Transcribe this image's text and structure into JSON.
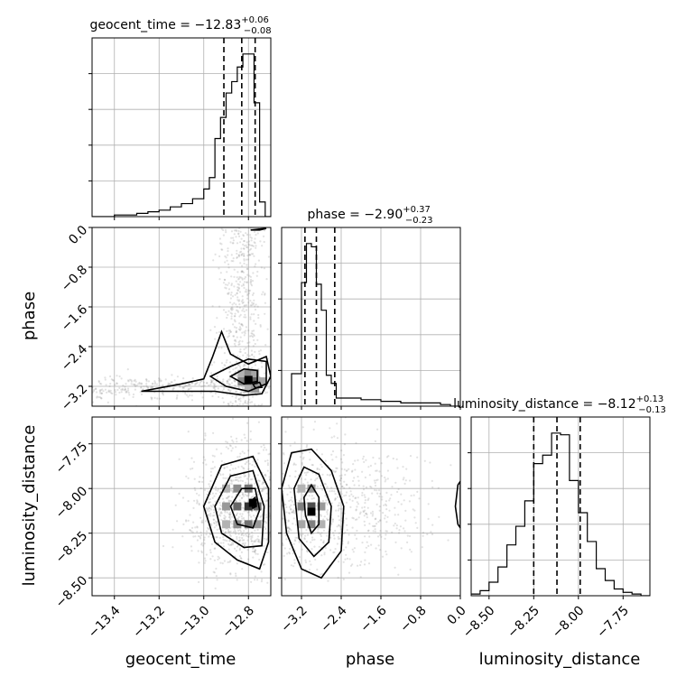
{
  "chart_data": {
    "type": "corner",
    "parameters": [
      "geocent_time",
      "phase",
      "luminosity_distance"
    ],
    "titles": [
      {
        "param": "geocent_time",
        "prefix": "geocent_time = ",
        "median": "−12.83",
        "upper": "+0.06",
        "lower": "−0.08"
      },
      {
        "param": "phase",
        "prefix": "phase = ",
        "median": "−2.90",
        "upper": "+0.37",
        "lower": "−0.23"
      },
      {
        "param": "luminosity_distance",
        "prefix": "luminosity_distance = ",
        "median": "−8.12",
        "upper": "+0.13",
        "lower": "−0.13"
      }
    ],
    "axis_labels": {
      "x": [
        "geocent_time",
        "phase",
        "luminosity_distance"
      ],
      "y": [
        "phase",
        "luminosity_distance"
      ]
    },
    "ranges": {
      "geocent_time": [
        -13.5,
        -12.7
      ],
      "phase": [
        -3.6,
        0.0
      ],
      "luminosity_distance": [
        -8.6,
        -7.6
      ]
    },
    "ticks": {
      "geocent_time": [
        {
          "v": -13.4,
          "label": "−13.4"
        },
        {
          "v": -13.2,
          "label": "−13.2"
        },
        {
          "v": -13.0,
          "label": "−13.0"
        },
        {
          "v": -12.8,
          "label": "−12.8"
        }
      ],
      "phase": [
        {
          "v": -3.2,
          "label": "−3.2"
        },
        {
          "v": -2.4,
          "label": "−2.4"
        },
        {
          "v": -1.6,
          "label": "−1.6"
        },
        {
          "v": -0.8,
          "label": "−0.8"
        },
        {
          "v": 0.0,
          "label": "0.0"
        }
      ],
      "luminosity_distance": [
        {
          "v": -8.5,
          "label": "−8.50"
        },
        {
          "v": -8.25,
          "label": "−8.25"
        },
        {
          "v": -8.0,
          "label": "−8.00"
        },
        {
          "v": -7.75,
          "label": "−7.75"
        }
      ]
    },
    "quantiles": {
      "geocent_time": [
        -12.91,
        -12.83,
        -12.77
      ],
      "phase": [
        -3.13,
        -2.9,
        -2.53
      ],
      "luminosity_distance": [
        -8.25,
        -8.12,
        -7.99
      ]
    },
    "histograms": {
      "geocent_time": {
        "edges": [
          -13.5,
          -13.45,
          -13.4,
          -13.35,
          -13.3,
          -13.25,
          -13.2,
          -13.15,
          -13.1,
          -13.05,
          -13.0,
          -12.975,
          -12.95,
          -12.925,
          -12.9,
          -12.875,
          -12.85,
          -12.825,
          -12.8,
          -12.775,
          -12.75,
          -12.725,
          -12.7
        ],
        "counts": [
          0,
          0,
          1,
          1,
          2,
          3,
          4,
          6,
          8,
          11,
          17,
          24,
          48,
          61,
          76,
          83,
          92,
          100,
          100,
          70,
          9,
          0
        ]
      },
      "phase": {
        "edges": [
          -3.6,
          -3.4,
          -3.2,
          -3.1,
          -3.0,
          -2.9,
          -2.8,
          -2.7,
          -2.6,
          -2.5,
          -2.4,
          -2.2,
          -2.0,
          -1.8,
          -1.6,
          -1.4,
          -1.2,
          -1.0,
          -0.8,
          -0.6,
          -0.4,
          -0.2,
          0.0
        ],
        "counts": [
          0,
          20,
          76,
          100,
          98,
          75,
          59,
          19,
          14,
          5,
          5,
          5,
          4,
          4,
          3,
          3,
          2,
          2,
          2,
          2,
          1,
          0
        ]
      },
      "luminosity_distance": {
        "edges": [
          -8.6,
          -8.55,
          -8.5,
          -8.45,
          -8.4,
          -8.35,
          -8.3,
          -8.25,
          -8.2,
          -8.15,
          -8.1,
          -8.05,
          -8.0,
          -7.95,
          -7.9,
          -7.85,
          -7.8,
          -7.75,
          -7.7,
          -7.65,
          -7.6
        ],
        "counts": [
          1,
          3,
          8,
          17,
          30,
          41,
          56,
          78,
          83,
          96,
          95,
          68,
          49,
          32,
          16,
          9,
          4,
          2,
          1,
          0
        ]
      }
    },
    "scatter_2d": {
      "phase_vs_geocent_time": "dense grey points concentrated near geocent_time -12.8 along full phase range, with tail toward -13.4 at phase near -3.3",
      "luminosity_distance_vs_geocent_time": "broad grey cloud centred near (-12.8, -8.1)",
      "luminosity_distance_vs_phase": "broad grey cloud centred near (-2.9, -8.1)"
    },
    "contours_2d": {
      "phase_vs_geocent_time": [
        [
          [
            -13.28,
            -3.3
          ],
          [
            -13.1,
            -3.15
          ],
          [
            -13.0,
            -3.05
          ],
          [
            -12.96,
            -2.6
          ],
          [
            -12.92,
            -2.1
          ],
          [
            -12.88,
            -2.55
          ],
          [
            -12.8,
            -2.75
          ],
          [
            -12.72,
            -2.6
          ],
          [
            -12.7,
            -3.0
          ],
          [
            -12.74,
            -3.35
          ],
          [
            -12.82,
            -3.38
          ],
          [
            -12.95,
            -3.3
          ],
          [
            -13.28,
            -3.3
          ]
        ],
        [
          [
            -12.97,
            -3.0
          ],
          [
            -12.88,
            -2.8
          ],
          [
            -12.8,
            -2.65
          ],
          [
            -12.72,
            -2.7
          ],
          [
            -12.72,
            -3.15
          ],
          [
            -12.8,
            -3.3
          ],
          [
            -12.9,
            -3.2
          ],
          [
            -12.97,
            -3.0
          ]
        ],
        [
          [
            -12.88,
            -3.0
          ],
          [
            -12.82,
            -2.85
          ],
          [
            -12.76,
            -2.88
          ],
          [
            -12.76,
            -3.1
          ],
          [
            -12.82,
            -3.15
          ],
          [
            -12.88,
            -3.0
          ]
        ],
        [
          [
            -12.78,
            -3.15
          ],
          [
            -12.75,
            -3.12
          ],
          [
            -12.74,
            -3.22
          ],
          [
            -12.77,
            -3.23
          ],
          [
            -12.78,
            -3.15
          ]
        ],
        [
          [
            -12.79,
            -0.05
          ],
          [
            -12.75,
            -0.05
          ],
          [
            -12.72,
            -0.02
          ],
          [
            -12.79,
            -0.05
          ]
        ]
      ],
      "luminosity_distance_vs_geocent_time": [
        [
          [
            -13.0,
            -8.1
          ],
          [
            -12.92,
            -7.87
          ],
          [
            -12.78,
            -7.82
          ],
          [
            -12.71,
            -8.0
          ],
          [
            -12.71,
            -8.3
          ],
          [
            -12.75,
            -8.45
          ],
          [
            -12.85,
            -8.4
          ],
          [
            -12.95,
            -8.3
          ],
          [
            -13.0,
            -8.1
          ]
        ],
        [
          [
            -12.95,
            -8.1
          ],
          [
            -12.88,
            -7.93
          ],
          [
            -12.78,
            -7.9
          ],
          [
            -12.73,
            -8.1
          ],
          [
            -12.74,
            -8.32
          ],
          [
            -12.82,
            -8.33
          ],
          [
            -12.92,
            -8.25
          ],
          [
            -12.95,
            -8.1
          ]
        ],
        [
          [
            -12.88,
            -8.1
          ],
          [
            -12.83,
            -8.0
          ],
          [
            -12.77,
            -8.0
          ],
          [
            -12.75,
            -8.12
          ],
          [
            -12.78,
            -8.22
          ],
          [
            -12.85,
            -8.2
          ],
          [
            -12.88,
            -8.1
          ]
        ],
        [
          [
            -12.79,
            -8.07
          ],
          [
            -12.77,
            -8.05
          ],
          [
            -12.765,
            -8.1
          ],
          [
            -12.78,
            -8.11
          ],
          [
            -12.79,
            -8.07
          ]
        ]
      ],
      "luminosity_distance_vs_phase": [
        [
          [
            -3.6,
            -8.0
          ],
          [
            -3.4,
            -7.8
          ],
          [
            -3.0,
            -7.78
          ],
          [
            -2.6,
            -7.9
          ],
          [
            -2.35,
            -8.1
          ],
          [
            -2.4,
            -8.35
          ],
          [
            -2.8,
            -8.5
          ],
          [
            -3.2,
            -8.45
          ],
          [
            -3.5,
            -8.25
          ],
          [
            -3.6,
            -8.0
          ]
        ],
        [
          [
            -3.35,
            -8.0
          ],
          [
            -3.15,
            -7.88
          ],
          [
            -2.85,
            -7.92
          ],
          [
            -2.6,
            -8.1
          ],
          [
            -2.65,
            -8.3
          ],
          [
            -2.95,
            -8.38
          ],
          [
            -3.25,
            -8.28
          ],
          [
            -3.35,
            -8.0
          ]
        ],
        [
          [
            -3.15,
            -8.05
          ],
          [
            -3.0,
            -7.98
          ],
          [
            -2.85,
            -8.05
          ],
          [
            -2.85,
            -8.2
          ],
          [
            -3.0,
            -8.25
          ],
          [
            -3.12,
            -8.15
          ],
          [
            -3.15,
            -8.05
          ]
        ],
        [
          [
            -0.05,
            -7.98
          ],
          [
            0.0,
            -7.96
          ],
          [
            0.0,
            -8.22
          ],
          [
            -0.05,
            -8.2
          ],
          [
            -0.1,
            -8.1
          ],
          [
            -0.05,
            -7.98
          ]
        ]
      ]
    },
    "density_cells_2d": {
      "phase_vs_geocent_time": [
        {
          "x": -12.83,
          "y": -2.95,
          "d": 0.3
        },
        {
          "x": -12.8,
          "y": -2.95,
          "d": 0.45
        },
        {
          "x": -12.77,
          "y": -2.95,
          "d": 0.35
        },
        {
          "x": -12.83,
          "y": -3.1,
          "d": 0.5
        },
        {
          "x": -12.8,
          "y": -3.1,
          "d": 0.75
        },
        {
          "x": -12.77,
          "y": -3.1,
          "d": 0.6
        },
        {
          "x": -12.74,
          "y": -3.1,
          "d": 0.35
        },
        {
          "x": -12.8,
          "y": -3.25,
          "d": 0.3
        },
        {
          "x": -12.77,
          "y": -3.25,
          "d": 0.4
        },
        {
          "x": -12.8,
          "y": -3.07,
          "d": 1.0
        }
      ],
      "luminosity_distance_vs_geocent_time": [
        {
          "x": -12.9,
          "y": -8.0,
          "d": 0.3
        },
        {
          "x": -12.85,
          "y": -8.0,
          "d": 0.45
        },
        {
          "x": -12.8,
          "y": -8.0,
          "d": 0.55
        },
        {
          "x": -12.9,
          "y": -8.1,
          "d": 0.4
        },
        {
          "x": -12.85,
          "y": -8.1,
          "d": 0.6
        },
        {
          "x": -12.8,
          "y": -8.1,
          "d": 0.8
        },
        {
          "x": -12.76,
          "y": -8.1,
          "d": 0.6
        },
        {
          "x": -12.9,
          "y": -8.2,
          "d": 0.3
        },
        {
          "x": -12.85,
          "y": -8.2,
          "d": 0.45
        },
        {
          "x": -12.8,
          "y": -8.2,
          "d": 0.55
        },
        {
          "x": -12.76,
          "y": -8.2,
          "d": 0.4
        },
        {
          "x": -12.78,
          "y": -8.08,
          "d": 1.0
        }
      ],
      "luminosity_distance_vs_phase": [
        {
          "x": -3.2,
          "y": -8.0,
          "d": 0.3
        },
        {
          "x": -3.0,
          "y": -8.0,
          "d": 0.4
        },
        {
          "x": -3.2,
          "y": -8.1,
          "d": 0.5
        },
        {
          "x": -3.0,
          "y": -8.1,
          "d": 0.7
        },
        {
          "x": -2.8,
          "y": -8.1,
          "d": 0.4
        },
        {
          "x": -3.2,
          "y": -8.2,
          "d": 0.35
        },
        {
          "x": -3.0,
          "y": -8.2,
          "d": 0.5
        },
        {
          "x": -2.8,
          "y": -8.2,
          "d": 0.3
        },
        {
          "x": -3.0,
          "y": -8.13,
          "d": 1.0
        }
      ]
    }
  }
}
